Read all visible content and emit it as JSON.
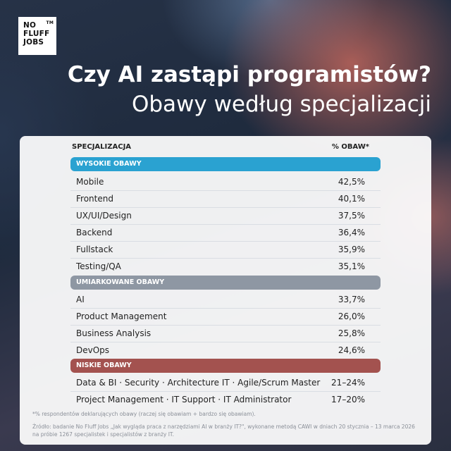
{
  "brand": {
    "line1": "NO",
    "line2": "FLUFF",
    "line3": "JOBS",
    "tm": "TM"
  },
  "title": "Czy AI zastąpi programistów?",
  "subtitle": "Obawy według specjalizacji",
  "table": {
    "col_specialization": "SPECJALIZACJA",
    "col_concern": "% OBAW*",
    "groups": [
      {
        "label": "WYSOKIE OBAWY",
        "color": "#2aa2d1",
        "rows": [
          {
            "name": "Mobile",
            "value": "42,5%"
          },
          {
            "name": "Frontend",
            "value": "40,1%"
          },
          {
            "name": "UX/UI/Design",
            "value": "37,5%"
          },
          {
            "name": "Backend",
            "value": "36,4%"
          },
          {
            "name": "Fullstack",
            "value": "35,9%"
          },
          {
            "name": "Testing/QA",
            "value": "35,1%"
          }
        ]
      },
      {
        "label": "UMIARKOWANE OBAWY",
        "color": "#8e97a3",
        "rows": [
          {
            "name": "AI",
            "value": "33,7%"
          },
          {
            "name": "Product Management",
            "value": "26,0%"
          },
          {
            "name": "Business Analysis",
            "value": "25,8%"
          },
          {
            "name": "DevOps",
            "value": "24,6%"
          }
        ]
      },
      {
        "label": "NISKIE OBAWY",
        "color": "#a3524f",
        "rows": [
          {
            "name": "Data & BI · Security · Architecture IT · Agile/Scrum Master",
            "value": "21–24%"
          },
          {
            "name": "Project Management · IT Support · IT Administrator",
            "value": "17–20%"
          }
        ]
      }
    ]
  },
  "footnote": "*% respondentów deklarujących obawy (raczej się obawiam + bardzo się obawiam).",
  "source_line1": "Źródło: badanie No Fluff Jobs „Jak wygląda praca z narzędziami AI w branży IT?\", wykonane metodą CAWI w dniach 20 stycznia – 13 marca 2026",
  "source_line2": "na próbie 1267 specjalistek i specjalistów z branży IT."
}
